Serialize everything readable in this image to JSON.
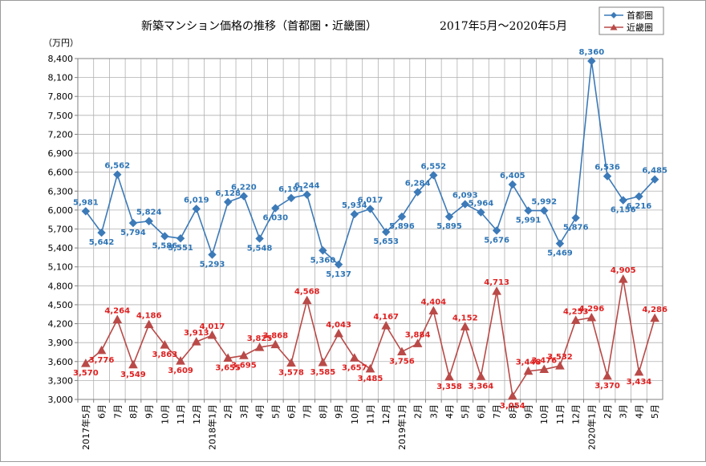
{
  "title": "新築マンション価格の推移（首都圏・近畿圏）",
  "period": "2017年5月～2020年5月",
  "unit": "（万円）",
  "legend": [
    {
      "name": "首都圏",
      "color": "#3C7AB8",
      "marker": "diamond"
    },
    {
      "name": "近畿圏",
      "color": "#B94A48",
      "marker": "triangle"
    }
  ],
  "chart_data": {
    "type": "line",
    "title": "新築マンション価格の推移（首都圏・近畿圏）",
    "subtitle": "2017年5月～2020年5月",
    "ylabel": "（万円）",
    "ylim": [
      3000,
      8400
    ],
    "yticks": [
      3000,
      3300,
      3600,
      3900,
      4200,
      4500,
      4800,
      5100,
      5400,
      5700,
      6000,
      6300,
      6600,
      6900,
      7200,
      7500,
      7800,
      8100,
      8400
    ],
    "ytick_labels": [
      "3,000",
      "3,300",
      "3,600",
      "3,900",
      "4,200",
      "4,500",
      "4,800",
      "5,100",
      "5,400",
      "5,700",
      "6,000",
      "6,300",
      "6,600",
      "6,900",
      "7,200",
      "7,500",
      "7,800",
      "8,100",
      "8,400"
    ],
    "grid": true,
    "legend_position": "top-right",
    "categories": [
      "2017年5月",
      "6月",
      "7月",
      "8月",
      "9月",
      "10月",
      "11月",
      "12月",
      "2018年1月",
      "2月",
      "3月",
      "4月",
      "5月",
      "6月",
      "7月",
      "8月",
      "9月",
      "10月",
      "11月",
      "12月",
      "2019年1月",
      "2月",
      "3月",
      "4月",
      "5月",
      "6月",
      "7月",
      "8月",
      "9月",
      "10月",
      "11月",
      "12月",
      "2020年1月",
      "2月",
      "3月",
      "4月",
      "5月"
    ],
    "series": [
      {
        "name": "首都圏",
        "color": "#3C7AB8",
        "label_color": "#2E75B6",
        "values": [
          5981,
          5642,
          6562,
          5794,
          5824,
          5586,
          5551,
          6019,
          5293,
          6128,
          6220,
          5548,
          6030,
          6191,
          6244,
          5360,
          5137,
          5934,
          6017,
          5653,
          5896,
          6284,
          6552,
          5895,
          6093,
          5964,
          5676,
          6405,
          5991,
          5992,
          5469,
          5876,
          8360,
          6536,
          6156,
          6216,
          6485
        ],
        "value_labels": [
          "5,981",
          "5,642",
          "6,562",
          "5,794",
          "5,824",
          "5,586",
          "5,551",
          "6,019",
          "5,293",
          "6,128",
          "6,220",
          "5,548",
          "6,030",
          "6,191",
          "6,244",
          "5,360",
          "5,137",
          "5,934",
          "6,017",
          "5,653",
          "5,896",
          "6,284",
          "6,552",
          "5,895",
          "6,093",
          "5,964",
          "5,676",
          "6,405",
          "5,991",
          "5,992",
          "5,469",
          "5,876",
          "8,360",
          "6,536",
          "6,156",
          "6,216",
          "6,485"
        ]
      },
      {
        "name": "近畿圏",
        "color": "#B94A48",
        "label_color": "#E02020",
        "values": [
          3570,
          3776,
          4264,
          3549,
          4186,
          3863,
          3609,
          3913,
          4017,
          3655,
          3695,
          3825,
          3868,
          3578,
          4568,
          3585,
          4043,
          3657,
          3485,
          4167,
          3756,
          3884,
          4404,
          3358,
          4152,
          3364,
          4713,
          3054,
          3448,
          3476,
          3532,
          4253,
          4296,
          3370,
          4905,
          3434,
          4286
        ],
        "value_labels": [
          "3,570",
          "3,776",
          "4,264",
          "3,549",
          "4,186",
          "3,863",
          "3,609",
          "3,913",
          "4,017",
          "3,655",
          "3,695",
          "3,825",
          "3,868",
          "3,578",
          "4,568",
          "3,585",
          "4,043",
          "3,657",
          "3,485",
          "4,167",
          "3,756",
          "3,884",
          "4,404",
          "3,358",
          "4,152",
          "3,364",
          "4,713",
          "3,054",
          "3,448",
          "3,476",
          "3,532",
          "4,253",
          "4,296",
          "3,370",
          "4,905",
          "3,434",
          "4,286"
        ]
      }
    ]
  }
}
